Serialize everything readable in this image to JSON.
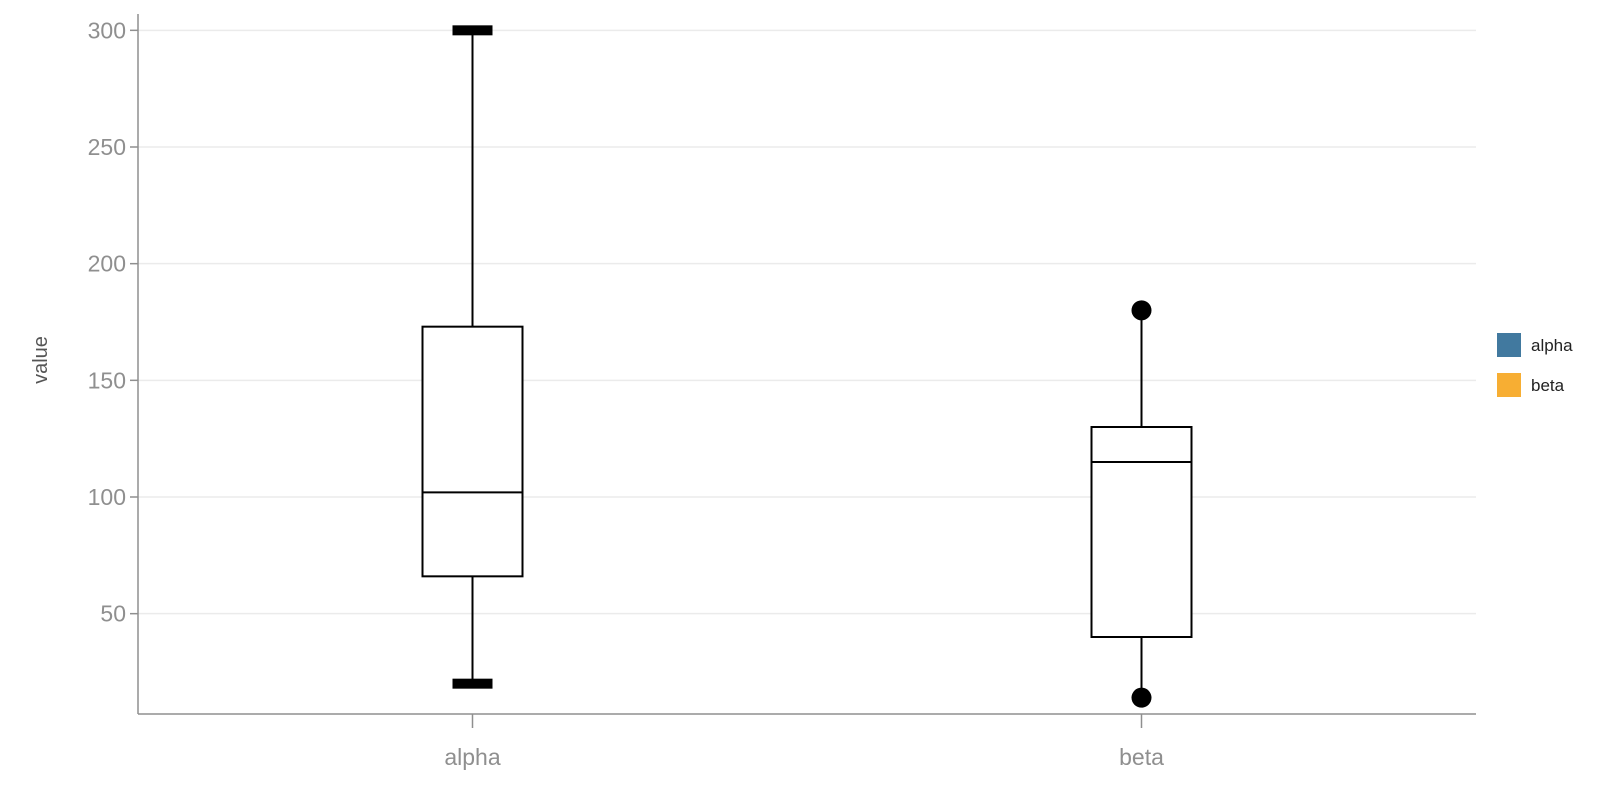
{
  "chart_data": {
    "type": "box",
    "title": "",
    "xlabel": "",
    "ylabel": "value",
    "categories": [
      "alpha",
      "beta"
    ],
    "ylim": [
      7,
      307
    ],
    "yticks": [
      50,
      100,
      150,
      200,
      250,
      300
    ],
    "grid": true,
    "legend_position": "right",
    "series": [
      {
        "name": "alpha",
        "color": "#41799f",
        "whisker_low": 20,
        "q1": 66,
        "median": 102,
        "q3": 173,
        "whisker_high": 300,
        "whisker_cap": "bar",
        "outliers": []
      },
      {
        "name": "beta",
        "color": "#f7ae33",
        "whisker_low": 14,
        "q1": 40,
        "median": 115,
        "q3": 130,
        "whisker_high": 180,
        "whisker_cap": "dot",
        "outliers": []
      }
    ]
  }
}
